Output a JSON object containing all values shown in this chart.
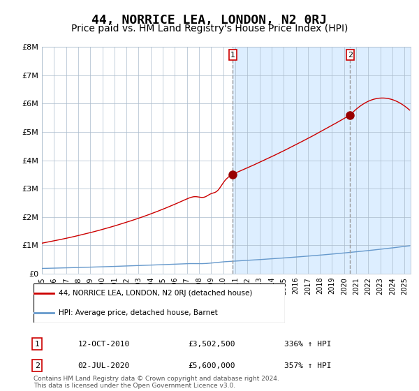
{
  "title": "44, NORRICE LEA, LONDON, N2 0RJ",
  "subtitle": "Price paid vs. HM Land Registry's House Price Index (HPI)",
  "title_fontsize": 13,
  "subtitle_fontsize": 10,
  "ylim": [
    0,
    8000000
  ],
  "yticks": [
    0,
    1000000,
    2000000,
    3000000,
    4000000,
    5000000,
    6000000,
    7000000,
    8000000
  ],
  "ytick_labels": [
    "£0",
    "£1M",
    "£2M",
    "£3M",
    "£4M",
    "£5M",
    "£6M",
    "£7M",
    "£8M"
  ],
  "red_line_color": "#cc0000",
  "blue_line_color": "#6699cc",
  "background_plot_color": "#ddeeff",
  "shaded_region_color": "#ddeeff",
  "grid_color": "#aabbcc",
  "marker1_date_num": 2010.79,
  "marker1_value": 3502500,
  "marker1_label": "1",
  "marker2_date_num": 2020.5,
  "marker2_value": 5600000,
  "marker2_label": "2",
  "vline1_x": 2010.79,
  "vline2_x": 2020.5,
  "legend_entry1": "44, NORRICE LEA, LONDON, N2 0RJ (detached house)",
  "legend_entry2": "HPI: Average price, detached house, Barnet",
  "annotation1_box": "1",
  "annotation1_date": "12-OCT-2010",
  "annotation1_price": "£3,502,500",
  "annotation1_hpi": "336% ↑ HPI",
  "annotation2_box": "2",
  "annotation2_date": "02-JUL-2020",
  "annotation2_price": "£5,600,000",
  "annotation2_hpi": "357% ↑ HPI",
  "footer": "Contains HM Land Registry data © Crown copyright and database right 2024.\nThis data is licensed under the Open Government Licence v3.0.",
  "xmin": 1995.0,
  "xmax": 2025.5,
  "xtick_years": [
    1995,
    1996,
    1997,
    1998,
    1999,
    2000,
    2001,
    2002,
    2003,
    2004,
    2005,
    2006,
    2007,
    2008,
    2009,
    2010,
    2011,
    2012,
    2013,
    2014,
    2015,
    2016,
    2017,
    2018,
    2019,
    2020,
    2021,
    2022,
    2023,
    2024,
    2025
  ]
}
